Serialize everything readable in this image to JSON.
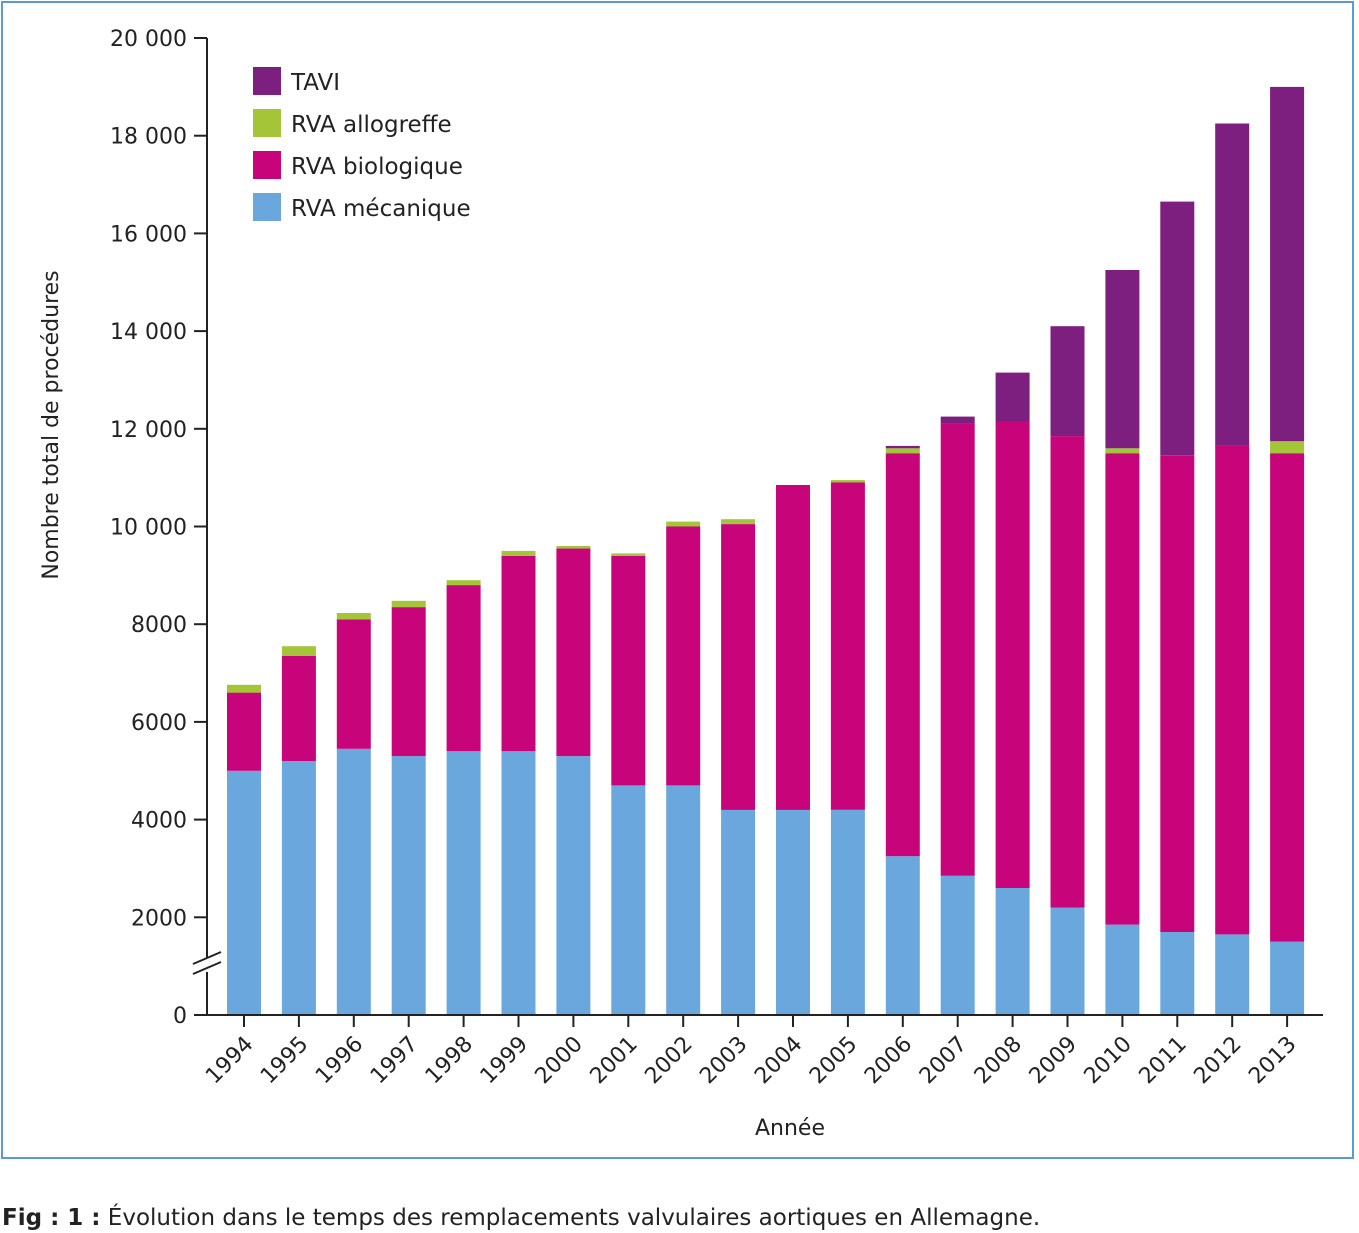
{
  "chart_data": {
    "type": "bar",
    "stacked": true,
    "xlabel": "Année",
    "ylabel": "Nombre total de procédures",
    "ylim": [
      0,
      20000
    ],
    "y_ticks": [
      0,
      2000,
      4000,
      6000,
      8000,
      10000,
      12000,
      14000,
      16000,
      18000,
      20000
    ],
    "y_tick_labels": [
      "0",
      "2000",
      "4000",
      "6000",
      "8000",
      "10 000",
      "12 000",
      "14 000",
      "16 000",
      "18 000",
      "20 000"
    ],
    "y_axis_break": true,
    "legend_position": "top-left",
    "categories": [
      "1994",
      "1995",
      "1996",
      "1997",
      "1998",
      "1999",
      "2000",
      "2001",
      "2002",
      "2003",
      "2004",
      "2005",
      "2006",
      "2007",
      "2008",
      "2009",
      "2010",
      "2011",
      "2012",
      "2013"
    ],
    "series": [
      {
        "name": "RVA mécanique",
        "color": "#6aa7dc",
        "values": [
          5000,
          5200,
          5450,
          5300,
          5400,
          5400,
          5300,
          4700,
          4700,
          4200,
          4200,
          4200,
          3250,
          2850,
          2600,
          2200,
          1850,
          1700,
          1650,
          1500
        ]
      },
      {
        "name": "RVA biologique",
        "color": "#c8047a",
        "values": [
          1600,
          2150,
          2650,
          3050,
          3400,
          4000,
          4250,
          4700,
          5300,
          5850,
          6650,
          6700,
          8250,
          9250,
          9550,
          9650,
          9650,
          9750,
          10000,
          10000
        ]
      },
      {
        "name": "RVA allogreffe",
        "color": "#a5c539",
        "values": [
          160,
          200,
          130,
          130,
          100,
          100,
          50,
          50,
          100,
          100,
          0,
          50,
          100,
          0,
          0,
          0,
          100,
          0,
          0,
          250
        ]
      },
      {
        "name": "TAVI",
        "color": "#7d1f7f",
        "values": [
          0,
          0,
          0,
          0,
          0,
          0,
          0,
          0,
          0,
          0,
          0,
          0,
          50,
          150,
          1000,
          2250,
          3650,
          5200,
          6600,
          7250
        ]
      }
    ]
  },
  "caption": {
    "prefix": "Fig : 1 :",
    "text": " Évolution dans le temps des remplacements valvulaires aortiques en Allemagne."
  }
}
